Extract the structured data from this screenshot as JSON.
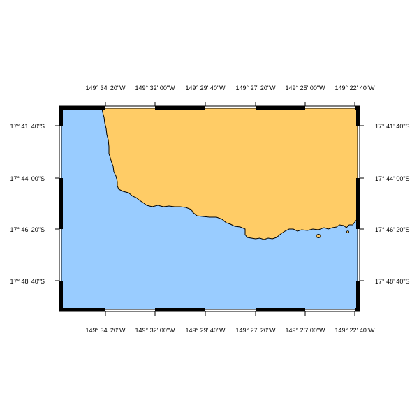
{
  "colors": {
    "water": "#99ccff",
    "land": "#ffcc66",
    "coastline": "#000000",
    "frame": "#000000"
  },
  "top_labels": [
    "149° 34' 20\"W",
    "149° 32' 00\"W",
    "149° 29' 40\"W",
    "149° 27' 20\"W",
    "149° 25' 00\"W",
    "149° 22' 40\"W"
  ],
  "bottom_labels": [
    "149° 34' 20\"W",
    "149° 32' 00\"W",
    "149° 29' 40\"W",
    "149° 27' 20\"W",
    "149° 25' 00\"W",
    "149° 22' 40\"W"
  ],
  "left_labels": [
    "17° 41' 40\"S",
    "17° 44' 00\"S",
    "17° 46' 20\"S",
    "17° 48' 40\"S"
  ],
  "right_labels": [
    "17° 41' 40\"S",
    "17° 44' 00\"S",
    "17° 46' 20\"S",
    "17° 48' 40\"S"
  ]
}
